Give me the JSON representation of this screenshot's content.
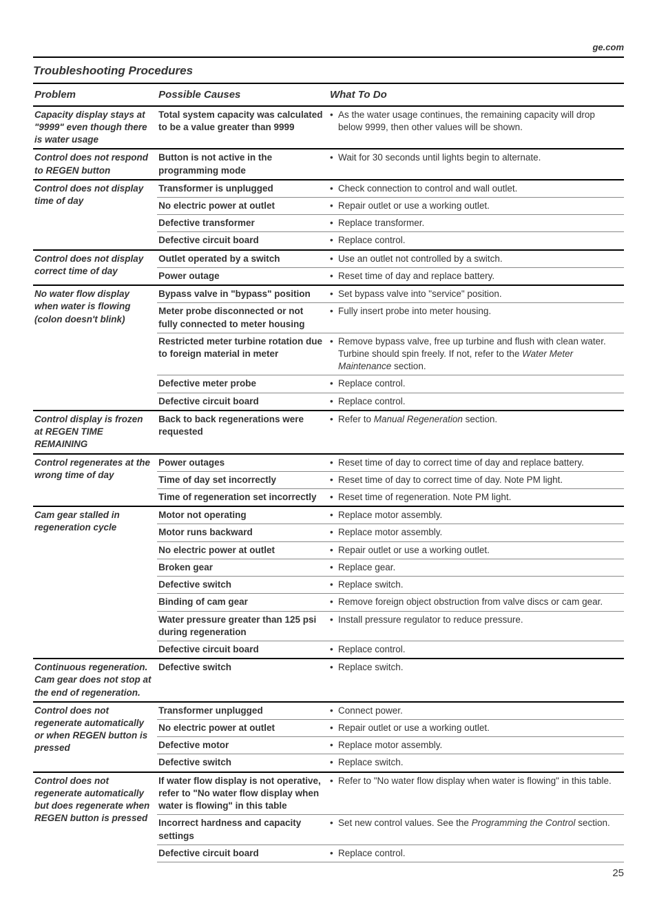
{
  "header": {
    "link": "ge.com"
  },
  "title": "Troubleshooting Procedures",
  "columns": {
    "problem": "Problem",
    "cause": "Possible Causes",
    "action": "What To Do"
  },
  "rows": [
    {
      "problem": "Capacity display stays at \"9999\" even though there is water usage",
      "problemRowspan": 1,
      "cause": "Total system capacity was calculated to be a value greater than 9999",
      "action": "As the water usage continues, the remaining capacity will drop below 9999, then other values will be shown.",
      "groupEnd": true
    },
    {
      "problem": "Control does not respond to REGEN button",
      "problemRowspan": 1,
      "cause": "Button is not active in the programming mode",
      "action": "Wait for 30 seconds until lights begin to alternate.",
      "groupEnd": true
    },
    {
      "problem": "Control does not display time of day",
      "problemRowspan": 4,
      "cause": "Transformer is unplugged",
      "action": "Check connection to control and wall outlet."
    },
    {
      "cause": "No electric power at outlet",
      "action": "Repair outlet or use a working outlet."
    },
    {
      "cause": "Defective transformer",
      "action": "Replace transformer."
    },
    {
      "cause": "Defective circuit board",
      "action": "Replace control.",
      "groupEnd": true
    },
    {
      "problem": "Control does not display correct time of day",
      "problemRowspan": 2,
      "cause": "Outlet operated by a switch",
      "action": "Use an outlet not controlled by a switch."
    },
    {
      "cause": "Power outage",
      "action": "Reset time of day and replace battery.",
      "groupEnd": true
    },
    {
      "problem": "No water flow display when water is flowing (colon doesn't blink)",
      "problemRowspan": 5,
      "cause": "Bypass valve in \"bypass\" position",
      "action": "Set bypass valve into \"service\" position."
    },
    {
      "cause": "Meter probe disconnected or not fully connected to meter housing",
      "action": "Fully insert probe into meter housing."
    },
    {
      "cause": "Restricted meter turbine rotation due to foreign material in meter",
      "actionHtml": "Remove bypass valve, free up turbine and flush with clean water. Turbine should spin freely. If not, refer to the <span class='italic'>Water Meter Maintenance</span> section."
    },
    {
      "cause": "Defective meter probe",
      "action": "Replace control."
    },
    {
      "cause": "Defective circuit board",
      "action": "Replace control.",
      "groupEnd": true
    },
    {
      "problem": "Control display is frozen at REGEN TIME REMAINING",
      "problemRowspan": 1,
      "cause": "Back to back regenerations were requested",
      "actionHtml": "Refer to <span class='italic'>Manual Regeneration</span> section.",
      "groupEnd": true
    },
    {
      "problem": "Control regenerates at the wrong time of day",
      "problemRowspan": 3,
      "cause": "Power outages",
      "action": "Reset time of day to correct time of day and replace battery."
    },
    {
      "cause": "Time of day set incorrectly",
      "action": "Reset time of day to correct time of day. Note PM light."
    },
    {
      "cause": "Time of regeneration set incorrectly",
      "action": "Reset time of regeneration. Note PM light.",
      "groupEnd": true
    },
    {
      "problem": "Cam gear stalled in regeneration cycle",
      "problemRowspan": 8,
      "cause": "Motor not operating",
      "action": "Replace motor assembly."
    },
    {
      "cause": "Motor runs backward",
      "action": "Replace motor assembly."
    },
    {
      "cause": "No electric power at outlet",
      "action": "Repair outlet or use a working outlet."
    },
    {
      "cause": "Broken gear",
      "action": "Replace gear."
    },
    {
      "cause": "Defective switch",
      "action": "Replace switch."
    },
    {
      "cause": "Binding of cam gear",
      "action": "Remove foreign object obstruction from valve discs or cam gear."
    },
    {
      "cause": "Water pressure greater than 125 psi during regeneration",
      "action": "Install pressure regulator to reduce pressure."
    },
    {
      "cause": "Defective circuit board",
      "action": "Replace control.",
      "groupEnd": true
    },
    {
      "problem": "Continuous regeneration. Cam gear does not stop at the end of regeneration.",
      "problemRowspan": 1,
      "cause": "Defective switch",
      "action": "Replace switch.",
      "groupEnd": true
    },
    {
      "problem": "Control does not regenerate automatically or when REGEN button is pressed",
      "problemRowspan": 4,
      "cause": "Transformer unplugged",
      "action": "Connect power."
    },
    {
      "cause": "No electric power at outlet",
      "action": "Repair outlet or use a working outlet."
    },
    {
      "cause": "Defective motor",
      "action": "Replace motor assembly."
    },
    {
      "cause": "Defective switch",
      "action": "Replace switch.",
      "groupEnd": true
    },
    {
      "problem": "Control does not regenerate automatically but does regenerate when REGEN button is pressed",
      "problemRowspan": 3,
      "cause": "If water flow display is not operative, refer to \"No water flow display when water is flowing\" in this table",
      "action": "Refer to \"No water flow display when water is flowing\" in this table."
    },
    {
      "cause": "Incorrect hardness and capacity settings",
      "actionHtml": "Set new control values. See the <span class='italic'>Programming the Control</span> section."
    },
    {
      "cause": "Defective circuit board",
      "action": "Replace control."
    }
  ],
  "pageNumber": "25"
}
